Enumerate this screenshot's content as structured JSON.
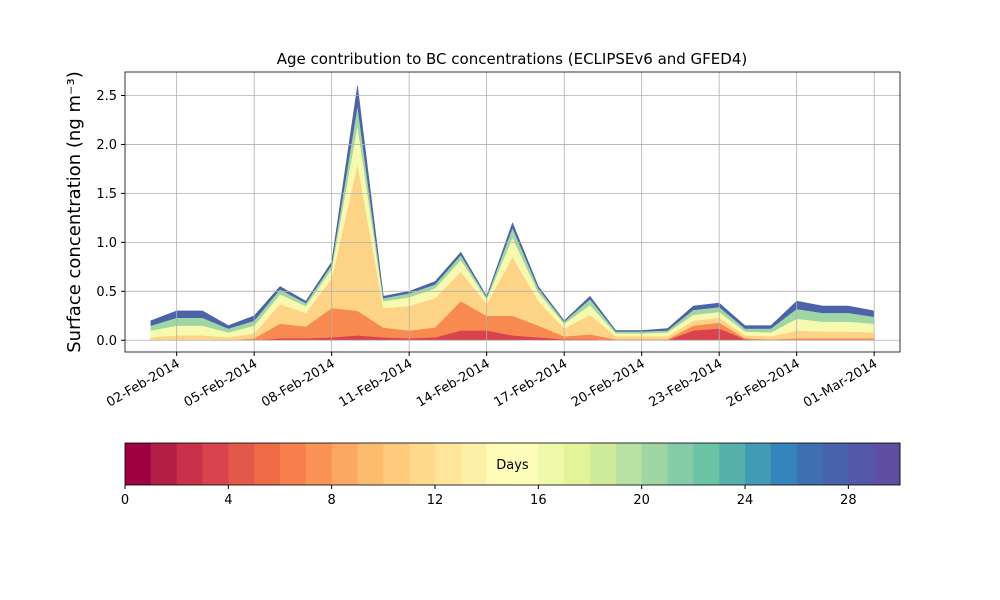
{
  "chart_data": {
    "type": "stacked-area",
    "title": "Age contribution to BC concentrations (ECLIPSEv6 and GFED4)",
    "y_label": "Surface concentration (ng m⁻³)",
    "x": [
      "2014-02-01",
      "2014-02-02",
      "2014-02-03",
      "2014-02-04",
      "2014-02-05",
      "2014-02-06",
      "2014-02-07",
      "2014-02-08",
      "2014-02-09",
      "2014-02-10",
      "2014-02-11",
      "2014-02-12",
      "2014-02-13",
      "2014-02-14",
      "2014-02-15",
      "2014-02-16",
      "2014-02-17",
      "2014-02-18",
      "2014-02-19",
      "2014-02-20",
      "2014-02-21",
      "2014-02-22",
      "2014-02-23",
      "2014-02-24",
      "2014-02-25",
      "2014-02-26",
      "2014-02-27",
      "2014-02-28",
      "2014-03-01"
    ],
    "series": [
      {
        "color": "#d8434e",
        "values": [
          0,
          0,
          0,
          0,
          0,
          0.02,
          0.02,
          0.03,
          0.05,
          0.03,
          0.02,
          0.03,
          0.1,
          0.1,
          0.05,
          0.03,
          0.01,
          0.01,
          0,
          0,
          0,
          0.1,
          0.12,
          0.01,
          0,
          0,
          0,
          0,
          0
        ]
      },
      {
        "color": "#f8894f",
        "values": [
          0,
          0,
          0,
          0,
          0.02,
          0.15,
          0.12,
          0.3,
          0.25,
          0.1,
          0.08,
          0.1,
          0.3,
          0.15,
          0.2,
          0.12,
          0.03,
          0.05,
          0.01,
          0.01,
          0.01,
          0.05,
          0.06,
          0.01,
          0.01,
          0.02,
          0.02,
          0.02,
          0.02
        ]
      },
      {
        "color": "#fdd485",
        "values": [
          0.03,
          0.05,
          0.05,
          0.03,
          0.05,
          0.2,
          0.14,
          0.3,
          1.5,
          0.2,
          0.25,
          0.3,
          0.3,
          0.12,
          0.6,
          0.25,
          0.08,
          0.2,
          0.03,
          0.03,
          0.03,
          0.05,
          0.05,
          0.03,
          0.03,
          0.08,
          0.07,
          0.07,
          0.06
        ]
      },
      {
        "color": "#f7f9ae",
        "values": [
          0.07,
          0.1,
          0.1,
          0.05,
          0.08,
          0.1,
          0.07,
          0.1,
          0.4,
          0.07,
          0.09,
          0.1,
          0.12,
          0.05,
          0.2,
          0.09,
          0.05,
          0.1,
          0.03,
          0.03,
          0.04,
          0.06,
          0.06,
          0.04,
          0.04,
          0.12,
          0.1,
          0.1,
          0.09
        ]
      },
      {
        "color": "#9ed7a4",
        "values": [
          0.05,
          0.08,
          0.08,
          0.04,
          0.05,
          0.05,
          0.03,
          0.04,
          0.2,
          0.03,
          0.04,
          0.04,
          0.05,
          0.02,
          0.1,
          0.04,
          0.02,
          0.06,
          0.02,
          0.02,
          0.02,
          0.05,
          0.05,
          0.03,
          0.04,
          0.1,
          0.09,
          0.09,
          0.07
        ]
      },
      {
        "color": "#4c62aa",
        "values": [
          0.05,
          0.07,
          0.07,
          0.03,
          0.05,
          0.03,
          0.02,
          0.03,
          0.2,
          0.02,
          0.02,
          0.03,
          0.03,
          0.01,
          0.05,
          0.02,
          0.01,
          0.03,
          0.01,
          0.01,
          0.02,
          0.04,
          0.04,
          0.03,
          0.03,
          0.08,
          0.07,
          0.07,
          0.06
        ]
      }
    ],
    "xlim": [
      "2014-01-31",
      "2014-03-02"
    ],
    "xticks": [
      {
        "value": "2014-02-02",
        "label": "02-Feb-2014"
      },
      {
        "value": "2014-02-05",
        "label": "05-Feb-2014"
      },
      {
        "value": "2014-02-08",
        "label": "08-Feb-2014"
      },
      {
        "value": "2014-02-11",
        "label": "11-Feb-2014"
      },
      {
        "value": "2014-02-14",
        "label": "14-Feb-2014"
      },
      {
        "value": "2014-02-17",
        "label": "17-Feb-2014"
      },
      {
        "value": "2014-02-20",
        "label": "20-Feb-2014"
      },
      {
        "value": "2014-02-23",
        "label": "23-Feb-2014"
      },
      {
        "value": "2014-02-26",
        "label": "26-Feb-2014"
      },
      {
        "value": "2014-03-01",
        "label": "01-Mar-2014"
      }
    ],
    "ylim": [
      -0.12,
      2.74
    ],
    "yticks": [
      {
        "value": 0,
        "label": "0.0"
      },
      0.5,
      {
        "value": 1,
        "label": "1.0"
      },
      1.5,
      {
        "value": 2,
        "label": "2.0"
      },
      2.5
    ],
    "grid": true,
    "colorbar": {
      "label": "Days",
      "lim": [
        0,
        30
      ],
      "ticks": [
        0,
        4,
        8,
        12,
        16,
        20,
        24,
        28
      ],
      "colors": [
        "#9e0142",
        "#b41f48",
        "#c9314b",
        "#d8434e",
        "#e4584a",
        "#ef6b46",
        "#f67f4b",
        "#f99456",
        "#fca862",
        "#fdbb6d",
        "#fdcb7b",
        "#fed98a",
        "#fee599",
        "#fff0a8",
        "#fffbb8",
        "#fbfdb8",
        "#f0f9a8",
        "#e2f39a",
        "#cfec9d",
        "#b8e2a1",
        "#9ed7a4",
        "#84cca5",
        "#6bc2a5",
        "#55b0ab",
        "#429bb4",
        "#3485bc",
        "#3f6fb1",
        "#4663ab",
        "#5358a6",
        "#5e4fa2"
      ]
    }
  }
}
